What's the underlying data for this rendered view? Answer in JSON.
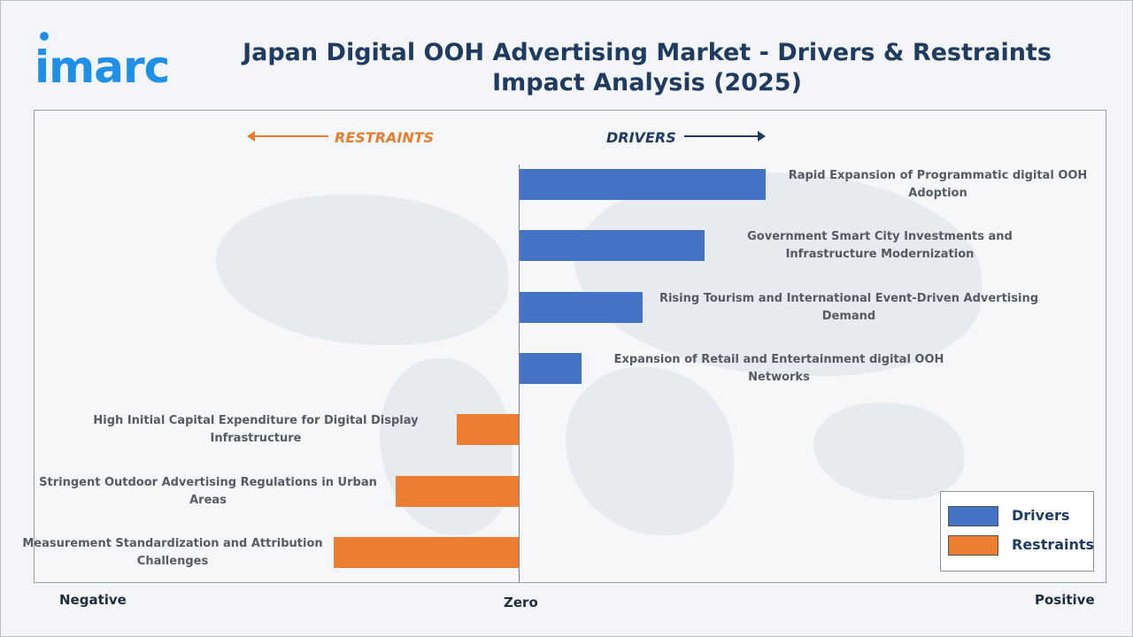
{
  "logo": {
    "text": "imarc"
  },
  "title": "Japan Digital OOH Advertising Market - Drivers & Restraints Impact Analysis (2025)",
  "direction": {
    "restraints": "RESTRAINTS",
    "drivers": "DRIVERS"
  },
  "axis": {
    "negative": "Negative",
    "zero": "Zero",
    "positive": "Positive"
  },
  "legend": {
    "drivers": "Drivers",
    "restraints": "Restraints"
  },
  "colors": {
    "drivers": "#4472c4",
    "restraints": "#ed7d31",
    "title": "#1f3b60",
    "logo": "#1e90e6"
  },
  "chart_data": {
    "type": "bar",
    "orientation": "horizontal",
    "title": "Japan Digital OOH Advertising Market - Drivers & Restraints Impact Analysis (2025)",
    "legend_position": "bottom-right",
    "categories": [
      "Rapid Expansion of Programmatic digital OOH Adoption",
      "Government Smart City Investments and Infrastructure Modernization",
      "Rising Tourism and International Event-Driven Advertising Demand",
      "Expansion of Retail and Entertainment digital OOH Networks",
      "High Initial Capital Expenditure for Digital Display Infrastructure",
      "Stringent Outdoor Advertising Regulations in Urban Areas",
      "Measurement Standardization and Attribution Challenges"
    ],
    "series": [
      {
        "name": "Drivers",
        "values": [
          4.0,
          3.0,
          2.0,
          1.0,
          null,
          null,
          null
        ]
      },
      {
        "name": "Restraints",
        "values": [
          null,
          null,
          null,
          null,
          -1.0,
          -2.0,
          -3.0
        ]
      }
    ],
    "xlim": [
      -4.0,
      4.0
    ]
  }
}
